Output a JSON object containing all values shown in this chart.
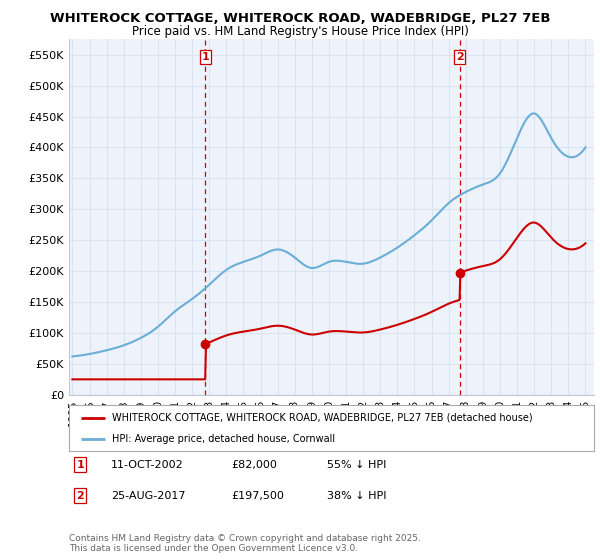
{
  "title_line1": "WHITEROCK COTTAGE, WHITEROCK ROAD, WADEBRIDGE, PL27 7EB",
  "title_line2": "Price paid vs. HM Land Registry's House Price Index (HPI)",
  "ylim": [
    0,
    575000
  ],
  "yticks": [
    0,
    50000,
    100000,
    150000,
    200000,
    250000,
    300000,
    350000,
    400000,
    450000,
    500000,
    550000
  ],
  "ytick_labels": [
    "£0",
    "£50K",
    "£100K",
    "£150K",
    "£200K",
    "£250K",
    "£300K",
    "£350K",
    "£400K",
    "£450K",
    "£500K",
    "£550K"
  ],
  "xlim_start": 1994.8,
  "xlim_end": 2025.5,
  "xticks": [
    1995,
    1996,
    1997,
    1998,
    1999,
    2000,
    2001,
    2002,
    2003,
    2004,
    2005,
    2006,
    2007,
    2008,
    2009,
    2010,
    2011,
    2012,
    2013,
    2014,
    2015,
    2016,
    2017,
    2018,
    2019,
    2020,
    2021,
    2022,
    2023,
    2024,
    2025
  ],
  "hpi_years_anchors": [
    1995,
    1996,
    1997,
    1998,
    1999,
    2000,
    2001,
    2002,
    2003,
    2004,
    2005,
    2006,
    2007,
    2008,
    2009,
    2010,
    2011,
    2012,
    2013,
    2014,
    2015,
    2016,
    2017,
    2018,
    2019,
    2020,
    2021,
    2022,
    2023,
    2024,
    2025
  ],
  "hpi_values_anchors": [
    62000,
    66000,
    72000,
    80000,
    92000,
    110000,
    135000,
    155000,
    178000,
    202000,
    215000,
    225000,
    235000,
    222000,
    205000,
    215000,
    215000,
    212000,
    222000,
    238000,
    258000,
    282000,
    310000,
    328000,
    340000,
    358000,
    415000,
    455000,
    415000,
    385000,
    400000
  ],
  "sale1_x": 2002.78,
  "sale1_y": 82000,
  "sale1_label": "1",
  "sale1_date": "11-OCT-2002",
  "sale1_price": "£82,000",
  "sale1_pct": "55% ↓ HPI",
  "sale2_x": 2017.64,
  "sale2_y": 197500,
  "sale2_label": "2",
  "sale2_date": "25-AUG-2017",
  "sale2_price": "£197,500",
  "sale2_pct": "38% ↓ HPI",
  "hpi_color": "#6baed6",
  "price_color": "#cc0000",
  "vline_color": "#cc0000",
  "grid_color": "#d8e4f0",
  "bg_color": "#eef2fb",
  "legend_label_price": "WHITEROCK COTTAGE, WHITEROCK ROAD, WADEBRIDGE, PL27 7EB (detached house)",
  "legend_label_hpi": "HPI: Average price, detached house, Cornwall",
  "footer": "Contains HM Land Registry data © Crown copyright and database right 2025.\nThis data is licensed under the Open Government Licence v3.0."
}
